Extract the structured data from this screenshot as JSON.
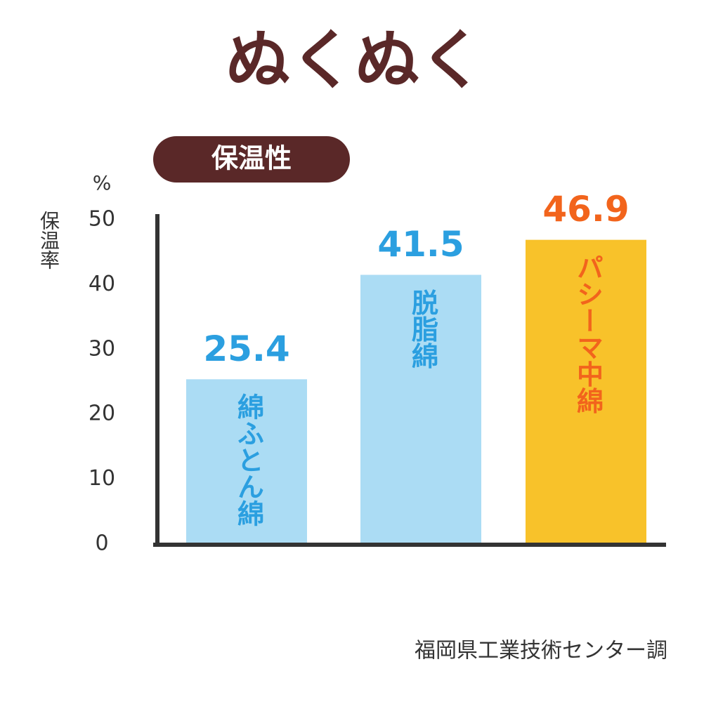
{
  "chart_data": {
    "type": "bar",
    "title": "ぬくぬく",
    "subtitle": "保温性",
    "y_label": "保温率",
    "y_unit": "%",
    "source": "福岡県工業技術センター調",
    "categories": [
      "綿ふとん綿",
      "脱脂綿",
      "パシーマ中綿"
    ],
    "values": [
      25.4,
      41.5,
      46.9
    ],
    "colors": [
      "#abdcf4",
      "#abdcf4",
      "#f8c22a"
    ],
    "label_colors": [
      "#2b9fe0",
      "#2b9fe0",
      "#f2641c"
    ],
    "ylim": [
      0,
      50
    ],
    "yticks": [
      0,
      10,
      20,
      30,
      40,
      50
    ],
    "grid": false
  }
}
